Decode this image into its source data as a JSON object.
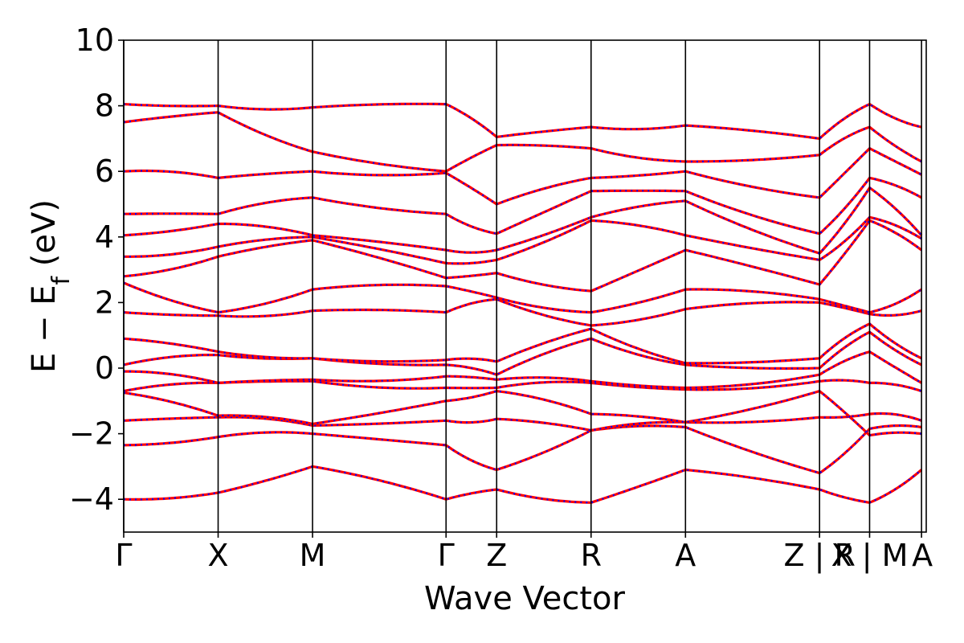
{
  "chart_data": {
    "type": "line",
    "xlabel": "Wave Vector",
    "ylabel": "E − E",
    "ylabel_sub": "f",
    "ylabel_unit": " (eV)",
    "ylim": [
      -5,
      10
    ],
    "yticks": [
      -4,
      -2,
      0,
      2,
      4,
      6,
      8,
      10
    ],
    "ytick_labels": [
      "−4",
      "−2",
      "0",
      "2",
      "4",
      "6",
      "8",
      "10"
    ],
    "xrange": [
      0,
      8.5
    ],
    "kpoints": [
      {
        "label": "Γ",
        "x": 0
      },
      {
        "label": "X",
        "x": 1
      },
      {
        "label": "M",
        "x": 2
      },
      {
        "label": "Γ",
        "x": 3.414
      },
      {
        "label": "Z",
        "x": 3.95
      },
      {
        "label": "R",
        "x": 4.95
      },
      {
        "label": "A",
        "x": 5.95
      },
      {
        "label": "Z|R",
        "x": 7.37
      },
      {
        "label": "X|M",
        "x": 7.9
      },
      {
        "label": "A",
        "x": 8.45
      }
    ],
    "band_colors": {
      "dft": "#ff0000",
      "fit": "#0000ff"
    },
    "bands_at_kpoints": [
      [
        -4.0,
        -3.8,
        -3.0,
        -4.0,
        -3.7,
        -4.1,
        -3.1,
        -3.7,
        -4.1,
        -3.1
      ],
      [
        -2.35,
        -2.1,
        -2.0,
        -2.35,
        -3.1,
        -1.9,
        -1.8,
        -3.2,
        -1.85,
        -1.8
      ],
      [
        -1.6,
        -1.5,
        -1.75,
        -1.6,
        -1.55,
        -1.9,
        -1.65,
        -1.5,
        -1.4,
        -1.6
      ],
      [
        -0.75,
        -1.45,
        -1.7,
        -1.0,
        -0.7,
        -1.4,
        -1.65,
        -0.7,
        -2.05,
        -2.0
      ],
      [
        -0.7,
        -0.45,
        -0.4,
        -0.6,
        -0.6,
        -0.45,
        -0.65,
        -0.4,
        -0.45,
        -0.7
      ],
      [
        -0.1,
        -0.45,
        -0.35,
        -0.25,
        -0.35,
        -0.4,
        -0.6,
        -0.2,
        0.5,
        -0.45
      ],
      [
        0.1,
        0.4,
        0.3,
        0.1,
        -0.2,
        0.9,
        0.1,
        0.0,
        1.1,
        0.1
      ],
      [
        0.9,
        0.5,
        0.3,
        0.25,
        0.2,
        1.2,
        0.15,
        0.3,
        1.35,
        0.3
      ],
      [
        1.7,
        1.6,
        1.75,
        1.7,
        2.1,
        1.3,
        1.8,
        2.0,
        1.65,
        1.75
      ],
      [
        2.6,
        1.7,
        2.4,
        2.5,
        2.15,
        1.7,
        2.4,
        2.1,
        1.7,
        2.4
      ],
      [
        2.8,
        3.4,
        3.9,
        2.75,
        2.9,
        2.35,
        3.6,
        2.55,
        4.5,
        3.6
      ],
      [
        3.4,
        3.7,
        4.0,
        3.2,
        3.3,
        4.5,
        4.05,
        3.3,
        4.6,
        3.95
      ],
      [
        4.05,
        4.4,
        4.05,
        3.6,
        3.6,
        4.6,
        5.1,
        3.5,
        5.5,
        4.05
      ],
      [
        4.7,
        4.7,
        5.2,
        4.7,
        4.1,
        5.4,
        5.4,
        4.1,
        5.8,
        5.2
      ],
      [
        6.0,
        5.8,
        6.0,
        5.95,
        5.0,
        5.8,
        6.0,
        5.2,
        6.7,
        5.9
      ],
      [
        7.5,
        7.8,
        6.6,
        6.0,
        6.8,
        6.7,
        6.3,
        6.5,
        7.35,
        6.3
      ],
      [
        8.05,
        8.0,
        7.95,
        8.05,
        7.05,
        7.35,
        7.4,
        7.0,
        8.05,
        7.35
      ]
    ]
  }
}
